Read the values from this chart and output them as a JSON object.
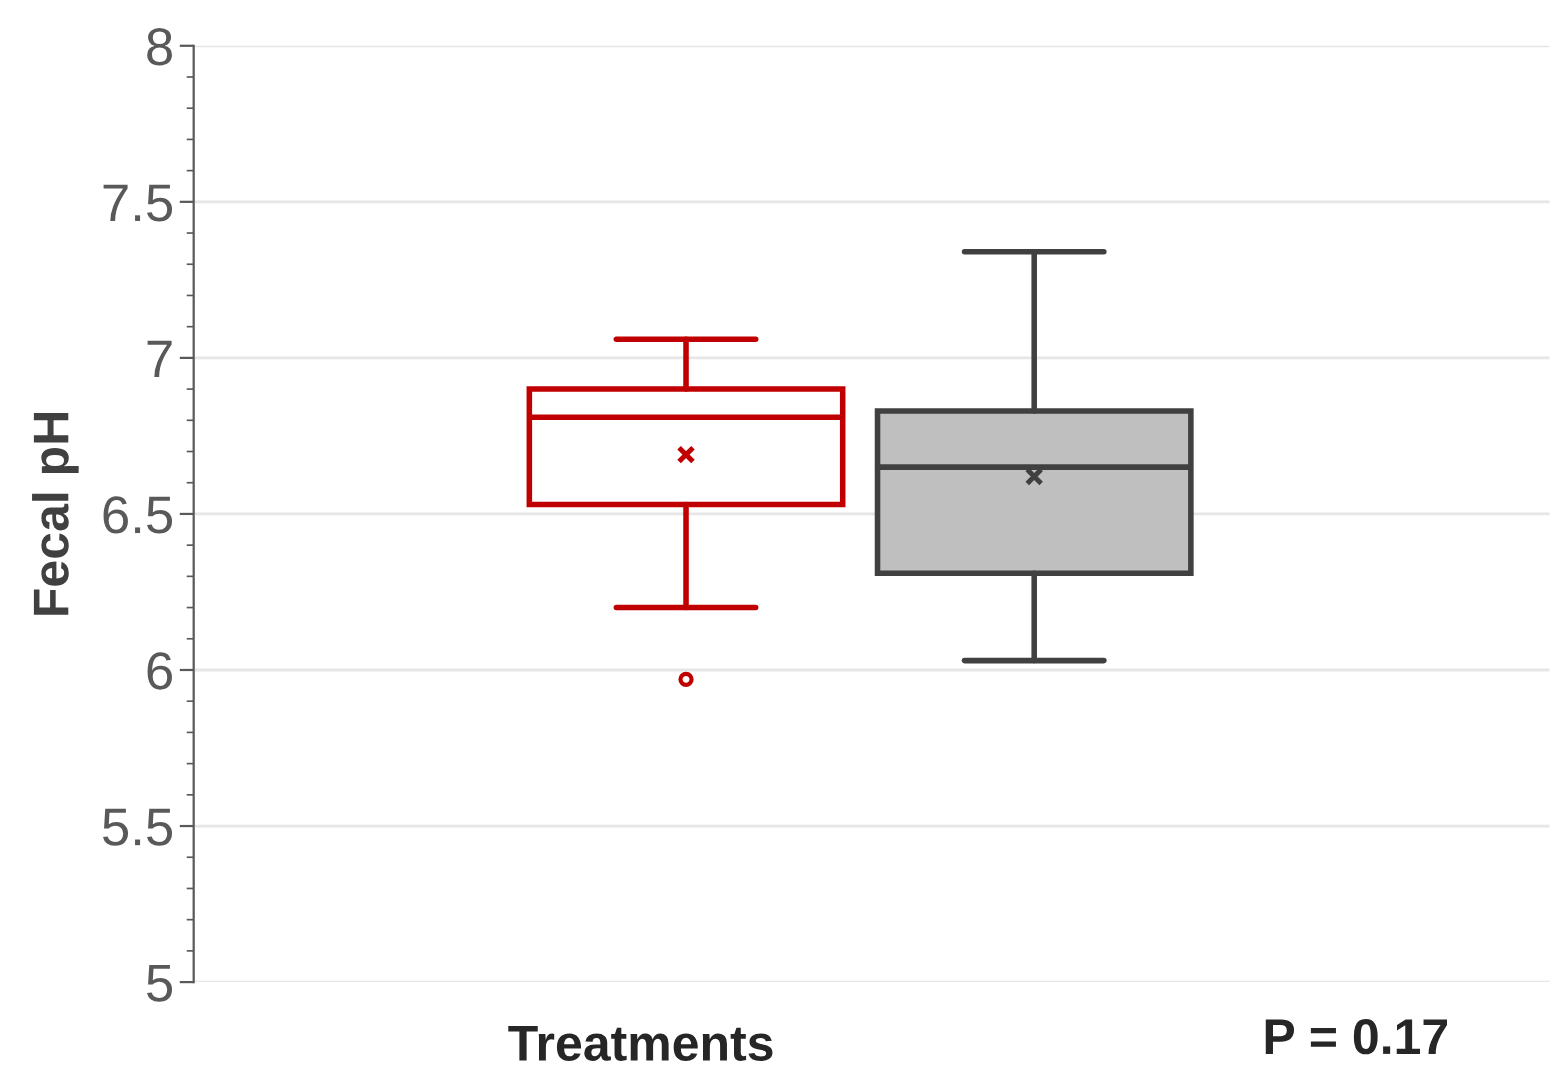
{
  "chart_data": {
    "type": "box",
    "ylabel": "Fecal pH",
    "xlabel": "Treatments",
    "annotations": [
      "P = 0.17"
    ],
    "categories": [
      null,
      null
    ],
    "colors": [
      "#c00000",
      "#bfbfbf"
    ],
    "boxes": [
      {
        "low": 6.2,
        "q1": 6.53,
        "median": 6.81,
        "q3": 6.9,
        "high": 7.06,
        "mean": 6.69,
        "outliers": [
          5.97
        ]
      },
      {
        "low": 6.03,
        "q1": 6.31,
        "median": 6.65,
        "q3": 6.83,
        "high": 7.34,
        "mean": 6.62
      }
    ],
    "ylim": [
      5,
      8
    ],
    "yticks": [
      5,
      5.5,
      6,
      6.5,
      7,
      7.5,
      8
    ],
    "grid": "y",
    "marker": "cross"
  }
}
